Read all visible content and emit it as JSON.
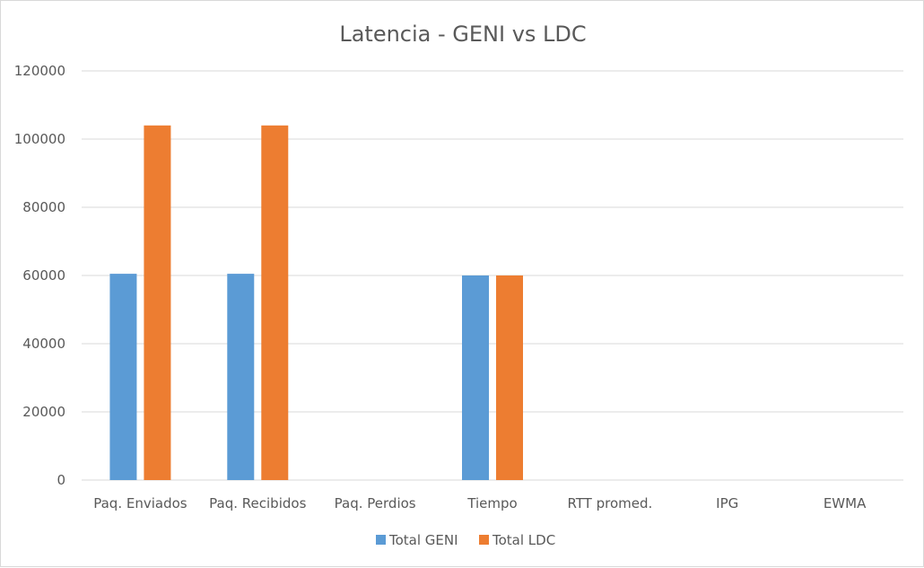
{
  "chart_data": {
    "type": "bar",
    "title": "Latencia - GENI vs LDC",
    "xlabel": "",
    "ylabel": "",
    "categories": [
      "Paq. Enviados",
      "Paq. Recibidos",
      "Paq. Perdios",
      "Tiempo",
      "RTT promed.",
      "IPG",
      "EWMA"
    ],
    "series": [
      {
        "name": "Total GENI",
        "color": "#5B9BD5",
        "values": [
          60500,
          60500,
          0,
          60000,
          0,
          0,
          0
        ]
      },
      {
        "name": "Total LDC",
        "color": "#ED7D31",
        "values": [
          104000,
          104000,
          0,
          60000,
          0,
          0,
          0
        ]
      }
    ],
    "ylim": [
      0,
      120000
    ],
    "yticks": [
      0,
      20000,
      40000,
      60000,
      80000,
      100000,
      120000
    ],
    "grid": true,
    "legend_position": "bottom"
  }
}
